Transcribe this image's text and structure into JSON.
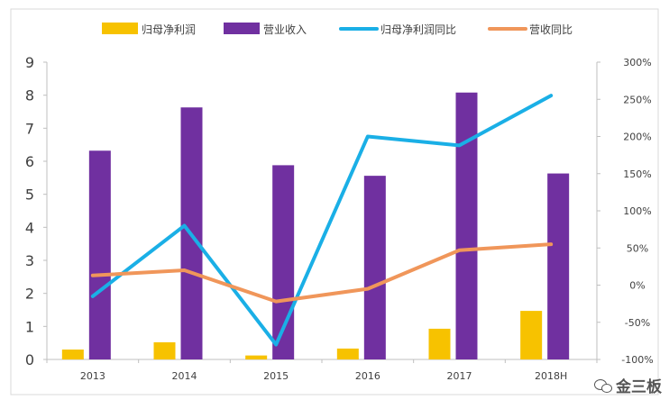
{
  "chart_data": {
    "type": "bar",
    "categories": [
      "2013",
      "2014",
      "2015",
      "2016",
      "2017",
      "2018H"
    ],
    "series": [
      {
        "name": "归母净利润",
        "kind": "bar",
        "axis": "left",
        "color": "#F7C200",
        "values": [
          0.3,
          0.52,
          0.12,
          0.33,
          0.93,
          1.47
        ]
      },
      {
        "name": "营业收入",
        "kind": "bar",
        "axis": "left",
        "color": "#7030A0",
        "values": [
          6.32,
          7.63,
          5.88,
          5.56,
          8.08,
          5.63
        ]
      },
      {
        "name": "归母净利润同比",
        "kind": "line",
        "axis": "right",
        "color": "#1AAFE6",
        "values": [
          -15,
          80,
          -80,
          200,
          188,
          255
        ]
      },
      {
        "name": "营收同比",
        "kind": "line",
        "axis": "right",
        "color": "#F0965A",
        "values": [
          13,
          20,
          -22,
          -5,
          47,
          55
        ]
      }
    ],
    "left_axis": {
      "min": 0,
      "max": 9,
      "ticks": [
        "0",
        "1",
        "2",
        "3",
        "4",
        "5",
        "6",
        "7",
        "8",
        "9"
      ]
    },
    "right_axis": {
      "min": -100,
      "max": 300,
      "ticks": [
        "-100%",
        "-50%",
        "0%",
        "50%",
        "100%",
        "150%",
        "200%",
        "250%",
        "300%"
      ]
    },
    "legend_position": "top",
    "grid": false
  },
  "watermark": {
    "text": "金三板",
    "icon": "wechat-icon"
  }
}
